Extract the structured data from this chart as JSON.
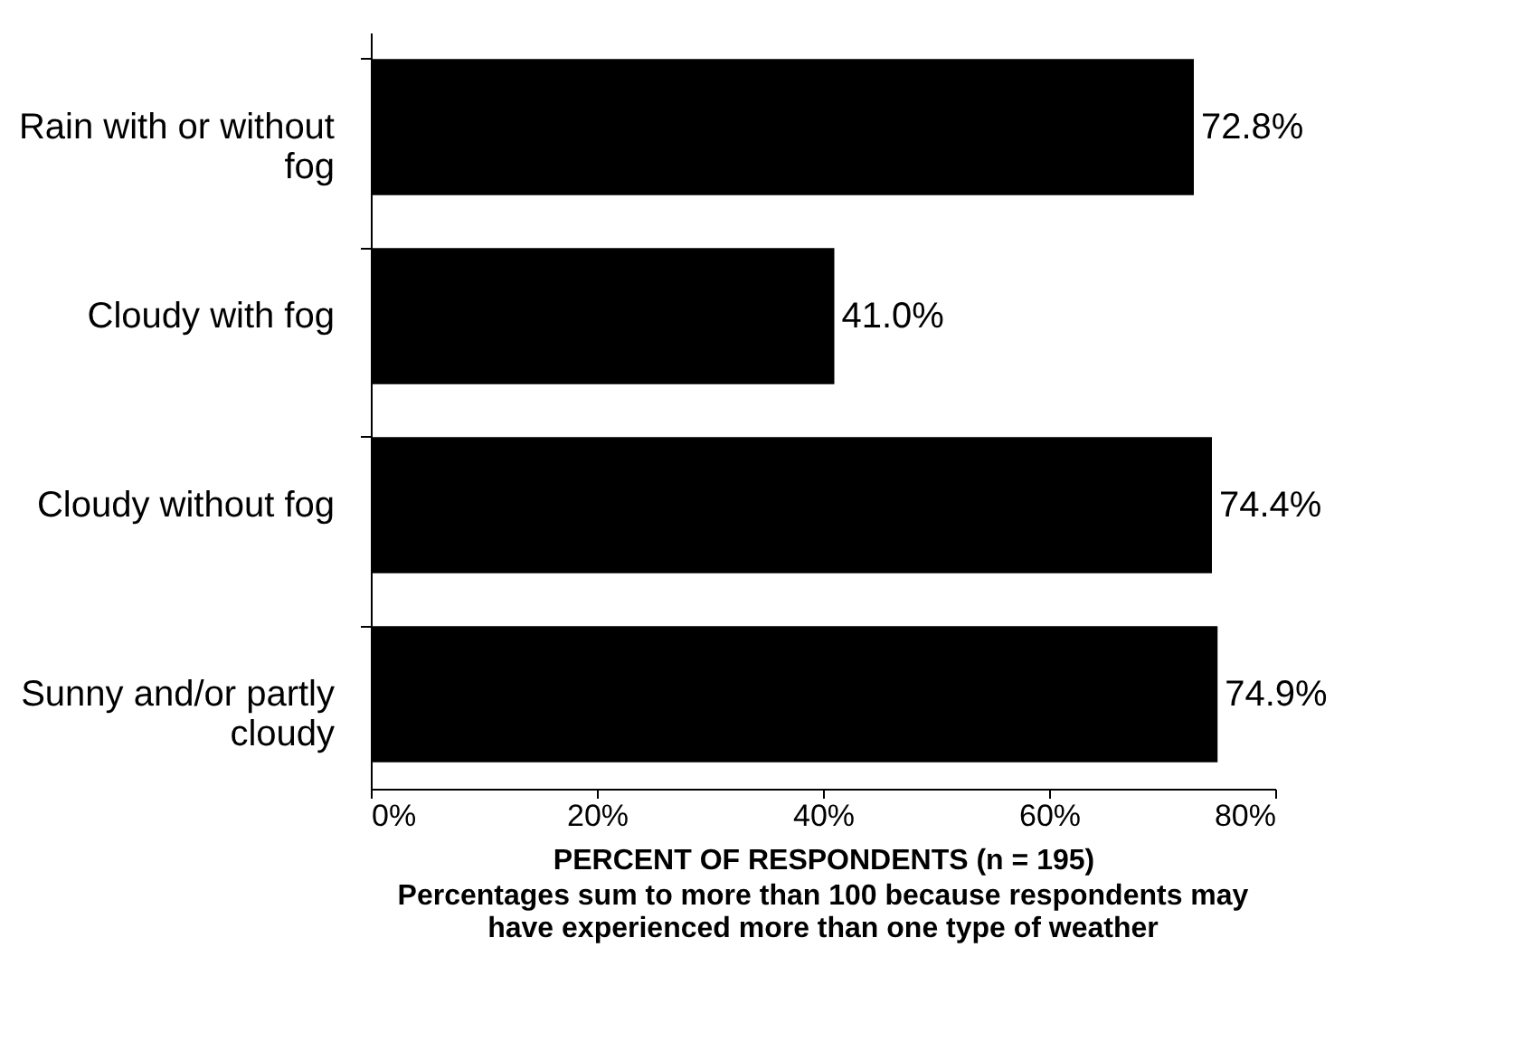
{
  "chart_data": {
    "type": "bar",
    "orientation": "horizontal",
    "categories": [
      "Rain with or without fog",
      "Cloudy with fog",
      "Cloudy without fog",
      "Sunny and/or partly cloudy"
    ],
    "values": [
      72.8,
      41.0,
      74.4,
      74.9
    ],
    "value_labels": [
      "72.8%",
      "41.0%",
      "74.4%",
      "74.9%"
    ],
    "color": "#000000",
    "xlim": [
      0,
      80
    ],
    "xticks": [
      {
        "value": 0,
        "label": "0%"
      },
      {
        "value": 20,
        "label": "20%"
      },
      {
        "value": 40,
        "label": "40%"
      },
      {
        "value": 60,
        "label": "60%"
      },
      {
        "value": 80,
        "label": "80%"
      }
    ],
    "xlabel": "PERCENT OF RESPONDENTS (n = 195)",
    "annotations": [
      "Percentages sum to more than 100 because respondents may have experienced more than one type of weather"
    ],
    "grid": false
  }
}
